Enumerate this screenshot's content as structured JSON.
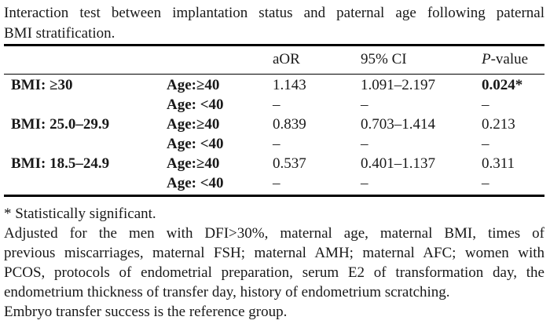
{
  "caption": {
    "line1": "Interaction test between implantation status and paternal age following paternal",
    "line2": "BMI stratification."
  },
  "table": {
    "headers": {
      "aor": "aOR",
      "ci": "95% CI",
      "p_italic": "P",
      "p_rest": "-value"
    },
    "rows": [
      {
        "bmi": "BMI: ≥30",
        "age": "Age:≥40",
        "aor": "1.143",
        "ci": "1.091–2.197",
        "p": "0.024*"
      },
      {
        "bmi": "",
        "age": "Age: <40",
        "aor": "–",
        "ci": "–",
        "p": "–"
      },
      {
        "bmi": "BMI: 25.0–29.9",
        "age": "Age:≥40",
        "aor": "0.839",
        "ci": "0.703–1.414",
        "p": "0.213"
      },
      {
        "bmi": "",
        "age": "Age: <40",
        "aor": "–",
        "ci": "–",
        "p": "–"
      },
      {
        "bmi": "BMI: 18.5–24.9",
        "age": "Age:≥40",
        "aor": "0.537",
        "ci": "0.401–1.137",
        "p": "0.311"
      },
      {
        "bmi": "",
        "age": "Age: <40",
        "aor": "–",
        "ci": "–",
        "p": "–"
      }
    ]
  },
  "footnotes": {
    "lines": [
      "* Statistically significant.",
      "Adjusted for the men with DFI>30%, maternal age, maternal BMI, times of",
      "previous miscarriages, maternal FSH; maternal AMH; maternal AFC; women with",
      "PCOS, protocols of endometrial preparation, serum E2 of transformation day, the",
      "endometrium thickness of transfer day, history of endometrium scratching.",
      "Embryo transfer success is the reference group."
    ]
  },
  "colors": {
    "text": "#191919",
    "rule": "#000000",
    "background": "#ffffff"
  }
}
